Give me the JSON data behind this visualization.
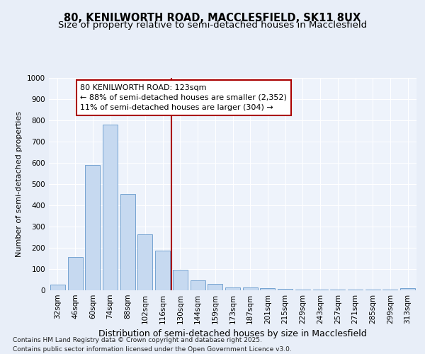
{
  "title": "80, KENILWORTH ROAD, MACCLESFIELD, SK11 8UX",
  "subtitle": "Size of property relative to semi-detached houses in Macclesfield",
  "xlabel": "Distribution of semi-detached houses by size in Macclesfield",
  "ylabel": "Number of semi-detached properties",
  "bin_labels": [
    "32sqm",
    "46sqm",
    "60sqm",
    "74sqm",
    "88sqm",
    "102sqm",
    "116sqm",
    "130sqm",
    "144sqm",
    "159sqm",
    "173sqm",
    "187sqm",
    "201sqm",
    "215sqm",
    "229sqm",
    "243sqm",
    "257sqm",
    "271sqm",
    "285sqm",
    "299sqm",
    "313sqm"
  ],
  "bin_values": [
    28,
    157,
    590,
    780,
    453,
    262,
    187,
    98,
    48,
    30,
    13,
    12,
    10,
    8,
    5,
    4,
    3,
    2,
    2,
    3,
    10
  ],
  "bar_color": "#c6d9f0",
  "bar_edge_color": "#6699cc",
  "vline_color": "#aa0000",
  "vline_pos": 6.5,
  "annotation_line1": "80 KENILWORTH ROAD: 123sqm",
  "annotation_line2": "← 88% of semi-detached houses are smaller (2,352)",
  "annotation_line3": "11% of semi-detached houses are larger (304) →",
  "ylim": [
    0,
    1000
  ],
  "yticks": [
    0,
    100,
    200,
    300,
    400,
    500,
    600,
    700,
    800,
    900,
    1000
  ],
  "title_fontsize": 10.5,
  "subtitle_fontsize": 9.5,
  "xlabel_fontsize": 9,
  "ylabel_fontsize": 8,
  "tick_fontsize": 7.5,
  "annot_fontsize": 8,
  "footer_fontsize": 6.5,
  "footer_line1": "Contains HM Land Registry data © Crown copyright and database right 2025.",
  "footer_line2": "Contains public sector information licensed under the Open Government Licence v3.0.",
  "bg_color": "#e8eef8",
  "plot_bg_color": "#eef3fb",
  "grid_color": "#ffffff"
}
